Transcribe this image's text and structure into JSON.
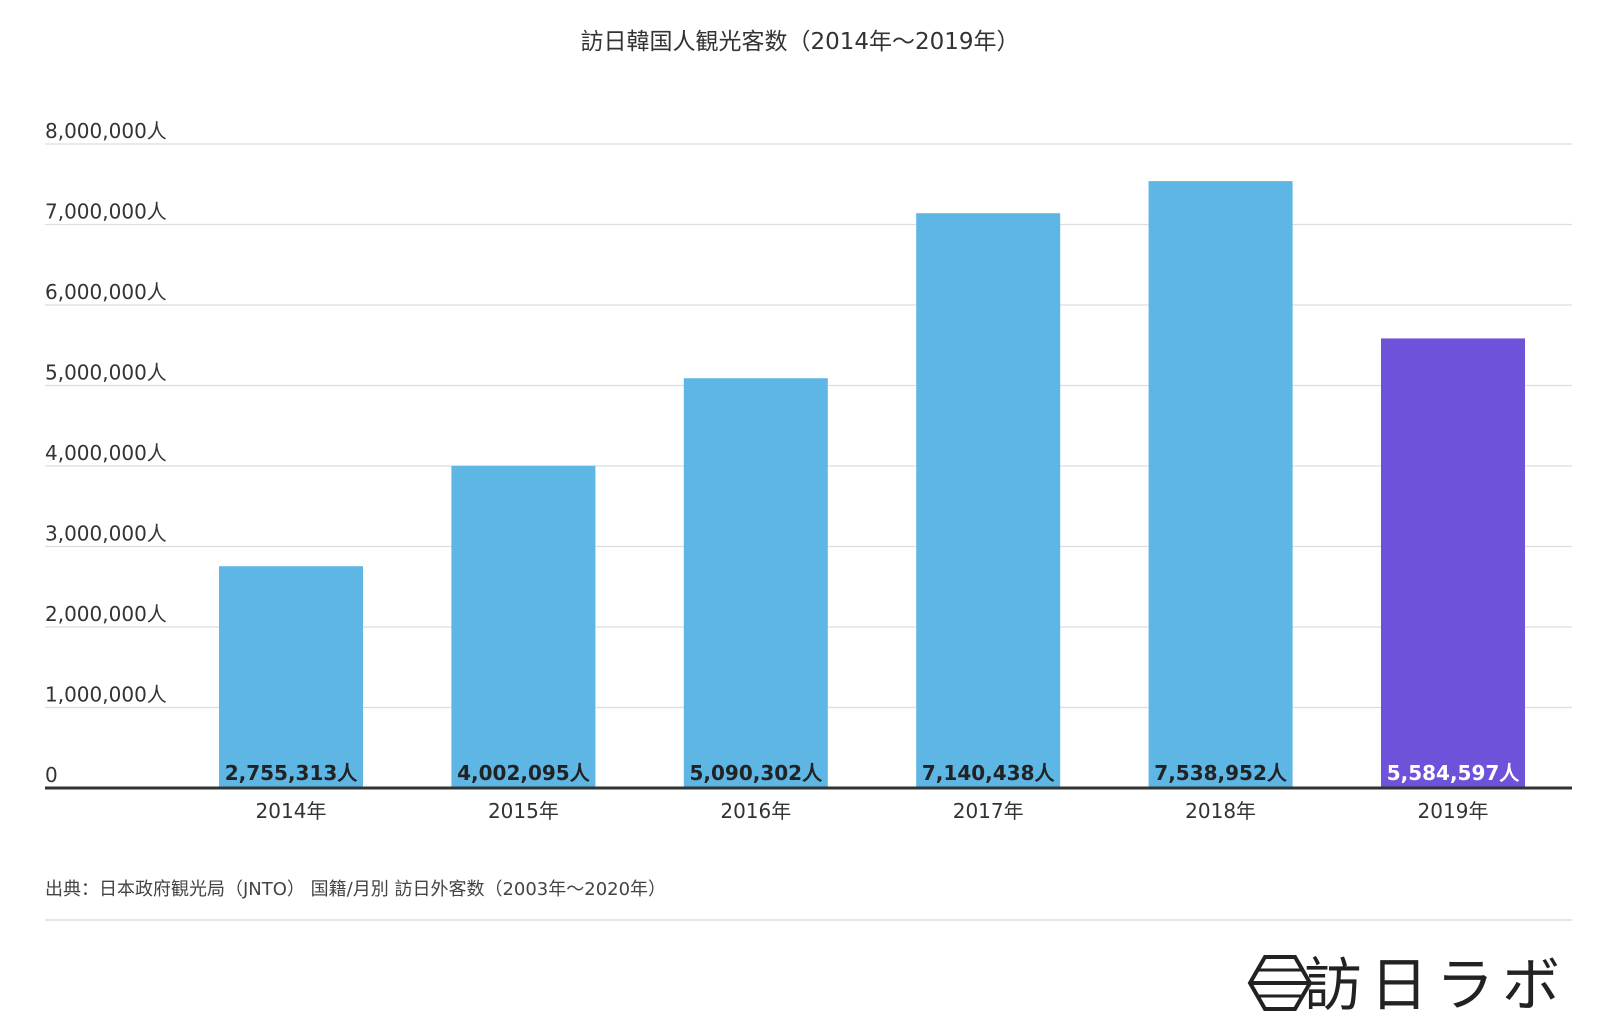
{
  "chart_data": {
    "type": "bar",
    "title": "訪日韓国人観光客数（2014年～2019年）",
    "categories": [
      "2014年",
      "2015年",
      "2016年",
      "2017年",
      "2018年",
      "2019年"
    ],
    "values": [
      2755313,
      4002095,
      5090302,
      7140438,
      7538952,
      5584597
    ],
    "data_labels": [
      "2,755,313人",
      "4,002,095人",
      "5,090,302人",
      "7,140,438人",
      "7,538,952人",
      "5,584,597人"
    ],
    "ylim": [
      0,
      8000000
    ],
    "yticks": [
      0,
      1000000,
      2000000,
      3000000,
      4000000,
      5000000,
      6000000,
      7000000,
      8000000
    ],
    "ytick_labels": [
      "0",
      "1,000,000人",
      "2,000,000人",
      "3,000,000人",
      "4,000,000人",
      "5,000,000人",
      "6,000,000人",
      "7,000,000人",
      "8,000,000人"
    ],
    "grid": true,
    "colors": {
      "default_bar": "#5eb6e4",
      "highlight_bar": "#6f52da",
      "grid": "#dddddd",
      "axis": "#333333",
      "label_dark": "#222222",
      "label_light": "#ffffff"
    },
    "highlight_index": 5
  },
  "source": "出典：日本政府観光局（JNTO） 国籍/月別 訪日外客数（2003年～2020年）",
  "logo": {
    "icon": "hexagon-logo-icon",
    "text": "訪日ラボ"
  }
}
